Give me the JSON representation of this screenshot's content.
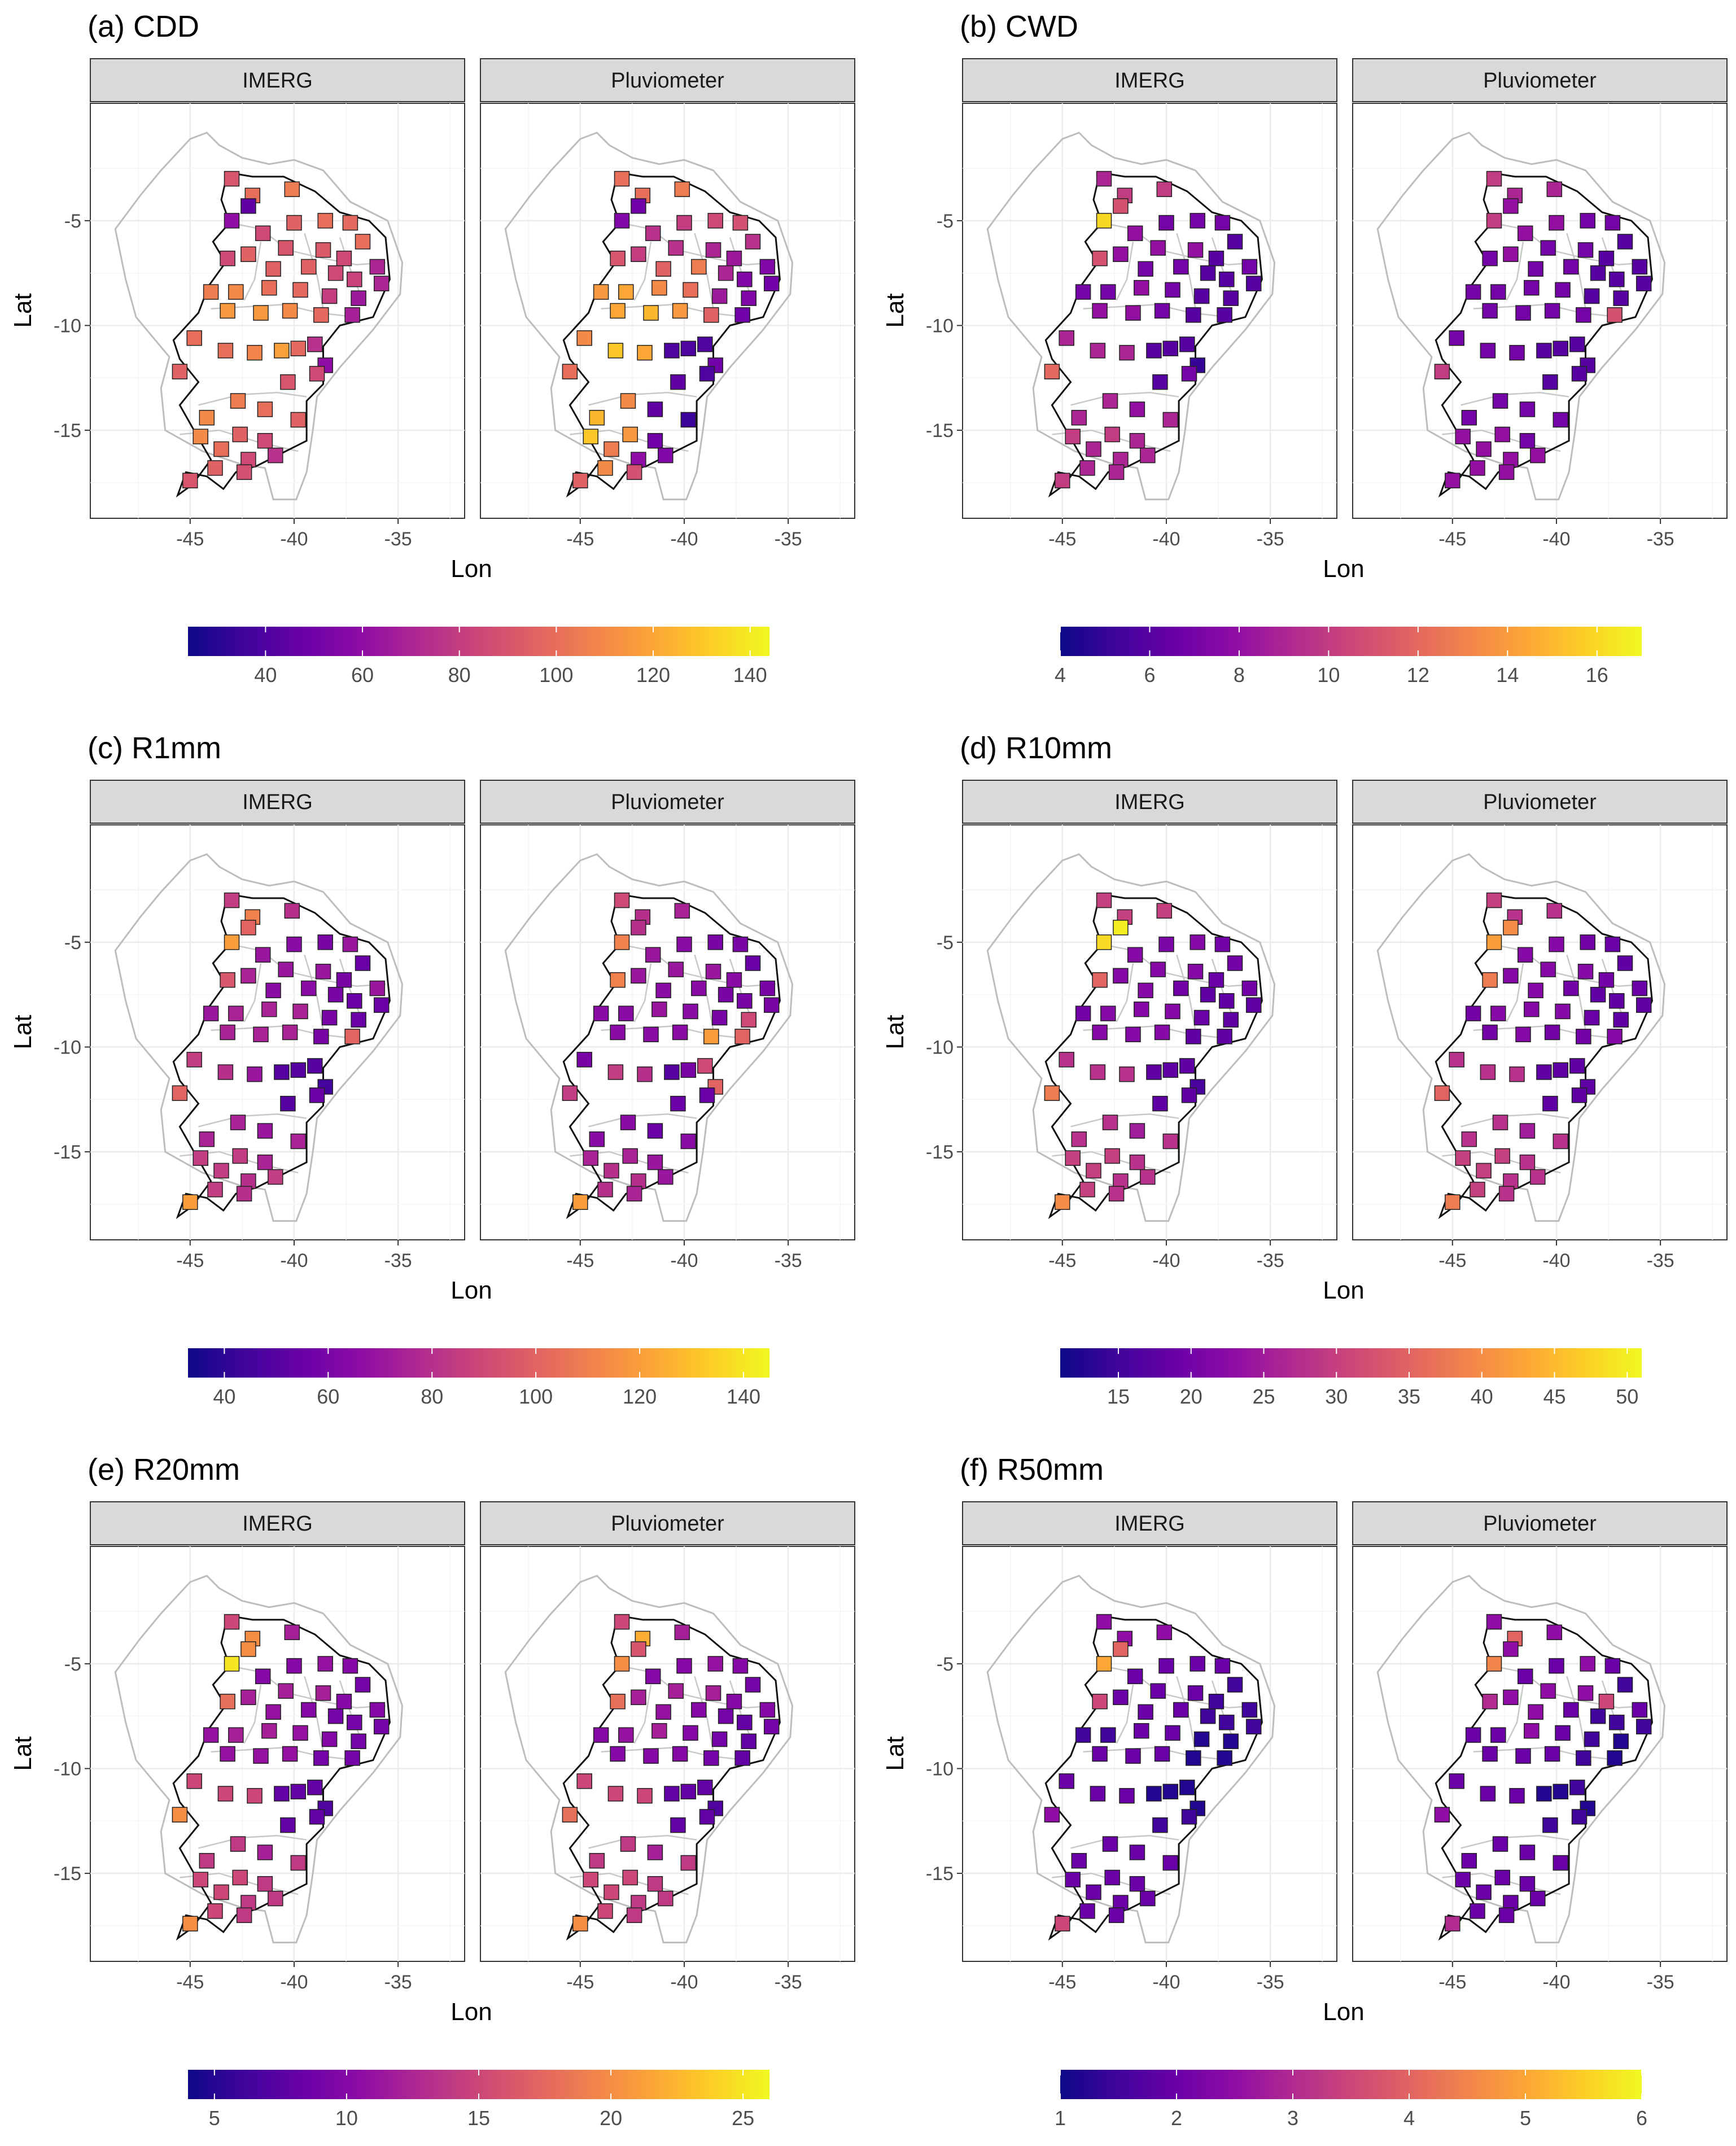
{
  "figure": {
    "xlabel": "Lon",
    "ylabel": "Lat",
    "facets": [
      "IMERG",
      "Pluviometer"
    ],
    "xticks": [
      "-45",
      "-40",
      "-35"
    ],
    "yticks": [
      "-5",
      "-10",
      "-15"
    ],
    "colors": {
      "low": "#0d0887",
      "mid": "#cc4778",
      "high": "#f0f921",
      "outline": "#000000",
      "strip": "#d9d9d9"
    }
  },
  "stations": [
    {
      "lon": -43.0,
      "lat": -3.0
    },
    {
      "lon": -42.0,
      "lat": -3.8
    },
    {
      "lon": -40.1,
      "lat": -3.5
    },
    {
      "lon": -42.2,
      "lat": -4.3
    },
    {
      "lon": -43.0,
      "lat": -5.0
    },
    {
      "lon": -41.5,
      "lat": -5.6
    },
    {
      "lon": -40.0,
      "lat": -5.1
    },
    {
      "lon": -38.5,
      "lat": -5.0
    },
    {
      "lon": -37.3,
      "lat": -5.1
    },
    {
      "lon": -36.7,
      "lat": -6.0
    },
    {
      "lon": -42.2,
      "lat": -6.6
    },
    {
      "lon": -40.4,
      "lat": -6.3
    },
    {
      "lon": -38.6,
      "lat": -6.4
    },
    {
      "lon": -37.6,
      "lat": -6.8
    },
    {
      "lon": -36.0,
      "lat": -7.2
    },
    {
      "lon": -43.2,
      "lat": -6.8
    },
    {
      "lon": -41.0,
      "lat": -7.3
    },
    {
      "lon": -39.3,
      "lat": -7.2
    },
    {
      "lon": -38.0,
      "lat": -7.5
    },
    {
      "lon": -37.1,
      "lat": -7.8
    },
    {
      "lon": -35.8,
      "lat": -8.0
    },
    {
      "lon": -44.0,
      "lat": -8.4
    },
    {
      "lon": -42.8,
      "lat": -8.4
    },
    {
      "lon": -41.2,
      "lat": -8.2
    },
    {
      "lon": -39.7,
      "lat": -8.3
    },
    {
      "lon": -38.3,
      "lat": -8.6
    },
    {
      "lon": -36.9,
      "lat": -8.7
    },
    {
      "lon": -43.2,
      "lat": -9.3
    },
    {
      "lon": -41.6,
      "lat": -9.4
    },
    {
      "lon": -40.2,
      "lat": -9.3
    },
    {
      "lon": -38.7,
      "lat": -9.5
    },
    {
      "lon": -37.2,
      "lat": -9.5
    },
    {
      "lon": -44.8,
      "lat": -10.6
    },
    {
      "lon": -43.3,
      "lat": -11.2
    },
    {
      "lon": -41.9,
      "lat": -11.3
    },
    {
      "lon": -40.6,
      "lat": -11.2
    },
    {
      "lon": -39.8,
      "lat": -11.1
    },
    {
      "lon": -39.0,
      "lat": -10.9
    },
    {
      "lon": -38.5,
      "lat": -11.9
    },
    {
      "lon": -40.3,
      "lat": -12.7
    },
    {
      "lon": -38.9,
      "lat": -12.3
    },
    {
      "lon": -45.5,
      "lat": -12.2
    },
    {
      "lon": -42.7,
      "lat": -13.6
    },
    {
      "lon": -41.4,
      "lat": -14.0
    },
    {
      "lon": -39.8,
      "lat": -14.5
    },
    {
      "lon": -44.2,
      "lat": -14.4
    },
    {
      "lon": -42.6,
      "lat": -15.2
    },
    {
      "lon": -41.4,
      "lat": -15.5
    },
    {
      "lon": -44.5,
      "lat": -15.3
    },
    {
      "lon": -43.5,
      "lat": -15.9
    },
    {
      "lon": -42.2,
      "lat": -16.4
    },
    {
      "lon": -40.9,
      "lat": -16.2
    },
    {
      "lon": -43.8,
      "lat": -16.8
    },
    {
      "lon": -42.4,
      "lat": -17.0
    },
    {
      "lon": -45.0,
      "lat": -17.4
    }
  ],
  "chart_data": [
    {
      "type": "heatmap",
      "panel": "(a) CDD",
      "title": "(a) CDD",
      "range": [
        24,
        144
      ],
      "ticks": [
        40,
        60,
        80,
        100,
        120,
        140
      ],
      "series": [
        {
          "name": "IMERG",
          "values": [
            90,
            100,
            105,
            45,
            60,
            85,
            95,
            100,
            98,
            100,
            95,
            90,
            92,
            85,
            70,
            85,
            95,
            95,
            85,
            82,
            70,
            105,
            110,
            100,
            98,
            80,
            65,
            115,
            115,
            110,
            98,
            68,
            100,
            100,
            108,
            118,
            98,
            75,
            60,
            90,
            85,
            95,
            105,
            100,
            95,
            110,
            95,
            85,
            110,
            100,
            85,
            75,
            95,
            88,
            90
          ]
        },
        {
          "name": "Pluviometer",
          "values": [
            100,
            100,
            105,
            50,
            55,
            75,
            80,
            85,
            88,
            75,
            80,
            75,
            70,
            65,
            55,
            90,
            95,
            105,
            70,
            55,
            50,
            115,
            120,
            110,
            100,
            65,
            55,
            120,
            125,
            115,
            95,
            50,
            110,
            130,
            120,
            40,
            40,
            40,
            50,
            45,
            40,
            100,
            110,
            45,
            35,
            125,
            115,
            50,
            130,
            105,
            60,
            55,
            110,
            88,
            95
          ]
        }
      ]
    },
    {
      "type": "heatmap",
      "panel": "(b) CWD",
      "title": "(b) CWD",
      "range": [
        4,
        17
      ],
      "ticks": [
        4,
        6,
        8,
        10,
        12,
        14,
        16
      ],
      "series": [
        {
          "name": "IMERG",
          "values": [
            9,
            10,
            10,
            11,
            16,
            8,
            7,
            7,
            7,
            6,
            8,
            8,
            8,
            6,
            7,
            11,
            7,
            7,
            6,
            6,
            6,
            7,
            7,
            8,
            7,
            6,
            6,
            8,
            8,
            7,
            6,
            6,
            9,
            9,
            9,
            6,
            6,
            6,
            5,
            6,
            7,
            12,
            9,
            8,
            9,
            9,
            10,
            9,
            10,
            9,
            9,
            9,
            9,
            9,
            10
          ]
        },
        {
          "name": "Pluviometer",
          "values": [
            10,
            9,
            9,
            8,
            10,
            8,
            8,
            7,
            7,
            6,
            8,
            7,
            7,
            6,
            6,
            7,
            7,
            7,
            6,
            6,
            6,
            7,
            7,
            7,
            7,
            6,
            6,
            7,
            7,
            7,
            7,
            11,
            7,
            7,
            7,
            6,
            6,
            6,
            6,
            6,
            6,
            10,
            7,
            7,
            7,
            7,
            8,
            7,
            8,
            8,
            8,
            8,
            8,
            8,
            8
          ]
        }
      ]
    },
    {
      "type": "heatmap",
      "panel": "(c) R1mm",
      "title": "(c) R1mm",
      "range": [
        33,
        145
      ],
      "ticks": [
        40,
        60,
        80,
        100,
        120,
        140
      ],
      "series": [
        {
          "name": "IMERG",
          "values": [
            85,
            110,
            80,
            100,
            120,
            70,
            65,
            60,
            70,
            55,
            75,
            70,
            70,
            60,
            70,
            95,
            65,
            65,
            60,
            55,
            55,
            70,
            75,
            75,
            75,
            60,
            55,
            75,
            75,
            75,
            60,
            100,
            85,
            80,
            70,
            50,
            50,
            50,
            45,
            50,
            55,
            100,
            75,
            70,
            75,
            75,
            85,
            75,
            85,
            85,
            80,
            85,
            85,
            80,
            120
          ]
        },
        {
          "name": "Pluviometer",
          "values": [
            90,
            80,
            75,
            80,
            110,
            70,
            65,
            60,
            60,
            55,
            70,
            70,
            70,
            65,
            60,
            110,
            65,
            65,
            60,
            60,
            60,
            65,
            65,
            70,
            65,
            60,
            90,
            65,
            65,
            65,
            120,
            100,
            60,
            85,
            80,
            50,
            60,
            90,
            100,
            55,
            55,
            85,
            65,
            55,
            65,
            65,
            75,
            70,
            75,
            80,
            80,
            70,
            80,
            75,
            120
          ]
        }
      ]
    },
    {
      "type": "heatmap",
      "panel": "(d) R10mm",
      "title": "(d) R10mm",
      "range": [
        11,
        51
      ],
      "ticks": [
        15,
        20,
        25,
        30,
        35,
        40,
        45,
        50
      ],
      "series": [
        {
          "name": "IMERG",
          "values": [
            30,
            30,
            30,
            50,
            48,
            22,
            21,
            22,
            20,
            20,
            22,
            22,
            22,
            19,
            20,
            35,
            22,
            20,
            18,
            18,
            18,
            20,
            22,
            22,
            22,
            19,
            18,
            22,
            22,
            22,
            18,
            18,
            28,
            28,
            28,
            18,
            18,
            18,
            16,
            18,
            18,
            38,
            28,
            25,
            28,
            28,
            30,
            28,
            30,
            30,
            28,
            28,
            30,
            28,
            40
          ]
        },
        {
          "name": "Pluviometer",
          "values": [
            30,
            28,
            28,
            40,
            42,
            22,
            22,
            20,
            19,
            18,
            22,
            22,
            22,
            20,
            19,
            38,
            22,
            20,
            18,
            18,
            18,
            20,
            22,
            22,
            22,
            19,
            18,
            20,
            22,
            20,
            20,
            22,
            28,
            28,
            28,
            18,
            18,
            18,
            18,
            18,
            18,
            35,
            28,
            25,
            28,
            28,
            30,
            28,
            30,
            30,
            28,
            28,
            30,
            28,
            38
          ]
        }
      ]
    },
    {
      "type": "heatmap",
      "panel": "(e) R20mm",
      "title": "(e) R20mm",
      "range": [
        4,
        26
      ],
      "ticks": [
        5,
        10,
        15,
        20,
        25
      ],
      "series": [
        {
          "name": "IMERG",
          "values": [
            15,
            20,
            12,
            20,
            25,
            10,
            10,
            11,
            10,
            9,
            12,
            12,
            12,
            10,
            10,
            18,
            11,
            10,
            9,
            9,
            9,
            11,
            12,
            12,
            11,
            10,
            9,
            11,
            11,
            11,
            9,
            9,
            15,
            15,
            15,
            8,
            8,
            8,
            7,
            8,
            8,
            20,
            14,
            12,
            14,
            14,
            15,
            14,
            15,
            15,
            14,
            14,
            15,
            14,
            20
          ]
        },
        {
          "name": "Pluviometer",
          "values": [
            15,
            22,
            12,
            16,
            20,
            10,
            10,
            11,
            10,
            9,
            12,
            12,
            12,
            10,
            10,
            18,
            11,
            10,
            9,
            8,
            9,
            10,
            11,
            12,
            10,
            9,
            8,
            10,
            10,
            10,
            9,
            8,
            15,
            15,
            15,
            8,
            8,
            8,
            7,
            8,
            8,
            18,
            14,
            12,
            14,
            14,
            15,
            14,
            15,
            15,
            14,
            14,
            15,
            14,
            20
          ]
        }
      ]
    },
    {
      "type": "heatmap",
      "panel": "(f) R50mm",
      "title": "(f) R50mm",
      "range": [
        1,
        6
      ],
      "ticks": [
        1,
        2,
        3,
        4,
        5,
        6
      ],
      "series": [
        {
          "name": "IMERG",
          "values": [
            2.5,
            2.5,
            2.5,
            4,
            5,
            2,
            2,
            2,
            2,
            1.5,
            2,
            2,
            2,
            1.5,
            1.5,
            3.5,
            2,
            2,
            1.5,
            1.5,
            1.5,
            1.5,
            1.5,
            2,
            2,
            1.2,
            1.2,
            2,
            2,
            2,
            1.2,
            1.2,
            2,
            2,
            2,
            1.2,
            1.2,
            1.2,
            1.2,
            1.5,
            1.5,
            2.5,
            2,
            2,
            2,
            2,
            2,
            2,
            2,
            2,
            2,
            2,
            2,
            2,
            3.5
          ]
        },
        {
          "name": "Pluviometer",
          "values": [
            2.5,
            4,
            2.5,
            2.5,
            4.5,
            2,
            2,
            2.5,
            2,
            1.5,
            2.5,
            2.5,
            2.5,
            3.5,
            2,
            3,
            2.5,
            2,
            1.5,
            1.5,
            1.5,
            2,
            2,
            2.5,
            2,
            1.5,
            1.2,
            2,
            2,
            2,
            1.5,
            1.2,
            2,
            2,
            2,
            1.2,
            1.2,
            1.5,
            1.2,
            1.5,
            1.5,
            2.5,
            2,
            2,
            2,
            2,
            2,
            2,
            2,
            2,
            2,
            2,
            2,
            2,
            3
          ]
        }
      ]
    }
  ]
}
